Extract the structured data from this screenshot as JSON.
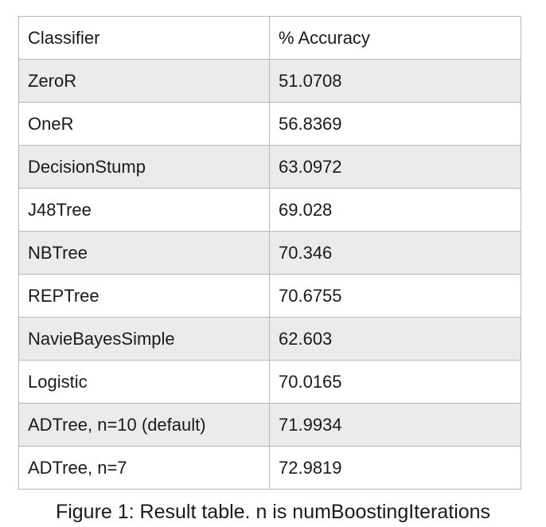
{
  "table": {
    "headers": [
      "Classifier",
      "% Accuracy"
    ],
    "rows": [
      [
        "ZeroR",
        "51.0708"
      ],
      [
        "OneR",
        "56.8369"
      ],
      [
        "DecisionStump",
        "63.0972"
      ],
      [
        "J48Tree",
        "69.028"
      ],
      [
        "NBTree",
        "70.346"
      ],
      [
        "REPTree",
        "70.6755"
      ],
      [
        "NavieBayesSimple",
        "62.603"
      ],
      [
        "Logistic",
        "70.0165"
      ],
      [
        "ADTree, n=10 (default)",
        "71.9934"
      ],
      [
        "ADTree, n=7",
        "72.9819"
      ]
    ],
    "row_colors": {
      "shaded": "#ebebeb",
      "plain": "#ffffff",
      "border": "#b8b8b8"
    }
  },
  "caption": "Figure 1: Result table. n is numBoostingIterations"
}
